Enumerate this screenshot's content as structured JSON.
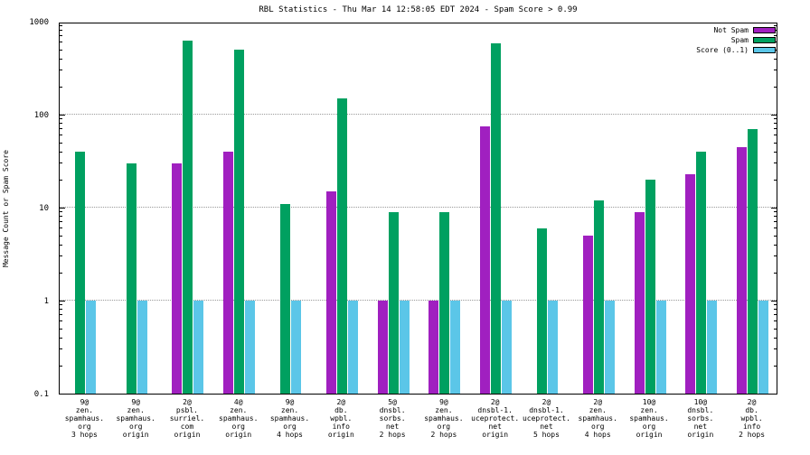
{
  "chart_data": {
    "type": "bar",
    "title": "RBL Statistics - Thu Mar 14 12:58:05 EDT 2024 - Spam Score > 0.99",
    "ylabel": "Message Count or Spam Score",
    "yscale": "log",
    "ylim": [
      0.1,
      1000
    ],
    "yticks": [
      "0.1",
      "1",
      "10",
      "100",
      "1000"
    ],
    "grid": "horizontal-dotted",
    "legend_position": "top-right-inside",
    "categories": [
      [
        "9@",
        "zen.",
        "spamhaus.",
        "org",
        "3 hops"
      ],
      [
        "9@",
        "zen.",
        "spamhaus.",
        "org",
        "origin"
      ],
      [
        "2@",
        "psbl.",
        "surriel.",
        "com",
        "origin"
      ],
      [
        "4@",
        "zen.",
        "spamhaus.",
        "org",
        "origin"
      ],
      [
        "9@",
        "zen.",
        "spamhaus.",
        "org",
        "4 hops"
      ],
      [
        "2@",
        "db.",
        "wpbl.",
        "info",
        "origin"
      ],
      [
        "5@",
        "dnsbl.",
        "sorbs.",
        "net",
        "2 hops"
      ],
      [
        "9@",
        "zen.",
        "spamhaus.",
        "org",
        "2 hops"
      ],
      [
        "2@",
        "dnsbl-1.",
        "uceprotect.",
        "net",
        "origin"
      ],
      [
        "2@",
        "dnsbl-1.",
        "uceprotect.",
        "net",
        "5 hops"
      ],
      [
        "2@",
        "zen.",
        "spamhaus.",
        "org",
        "4 hops"
      ],
      [
        "10@",
        "zen.",
        "spamhaus.",
        "org",
        "origin"
      ],
      [
        "10@",
        "dnsbl.",
        "sorbs.",
        "net",
        "origin"
      ],
      [
        "2@",
        "db.",
        "wpbl.",
        "info",
        "2 hops"
      ]
    ],
    "series": [
      {
        "key": "not-spam",
        "name": "Not Spam",
        "color": "#A020C0",
        "values": [
          null,
          null,
          30,
          40,
          null,
          15,
          1,
          1,
          75,
          null,
          5,
          9,
          23,
          45
        ]
      },
      {
        "key": "spam",
        "name": "Spam",
        "color": "#00A060",
        "values": [
          40,
          30,
          620,
          500,
          11,
          150,
          9,
          9,
          580,
          6,
          12,
          20,
          40,
          70
        ]
      },
      {
        "key": "score",
        "name": "Score (0..1)",
        "color": "#5BC6E8",
        "values": [
          1,
          1,
          1,
          1,
          1,
          1,
          1,
          1,
          1,
          1,
          1,
          1,
          1,
          1
        ]
      }
    ]
  }
}
